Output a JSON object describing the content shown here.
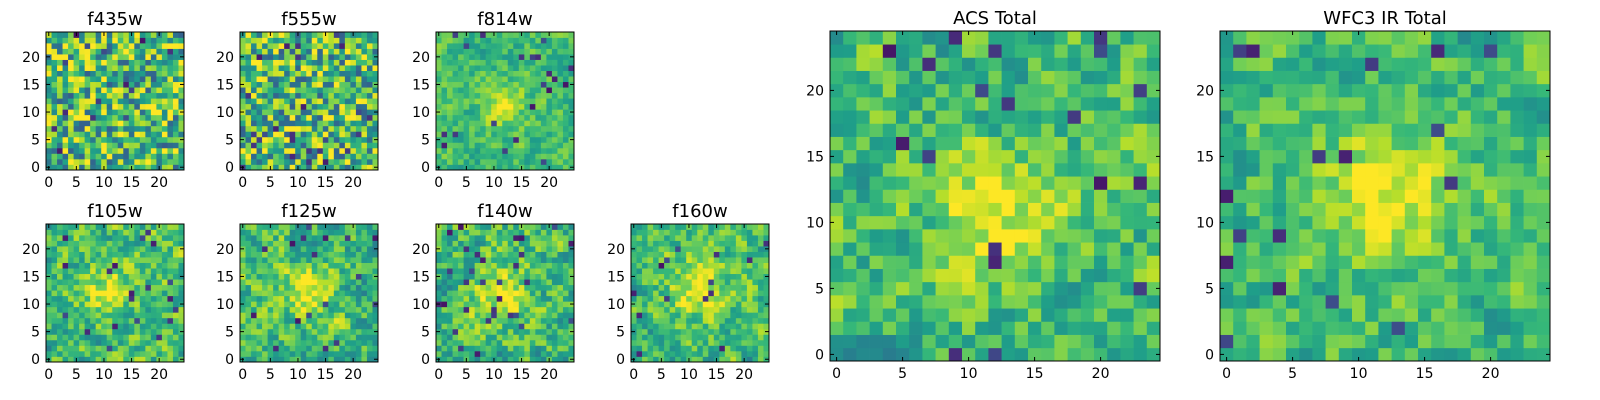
{
  "figure": {
    "description_note": "Grid of 25x25 pixel heatmap cutouts (viridis colormap) per filter band plus stacked totals."
  },
  "chart_data": [
    {
      "type": "heatmap",
      "title": "f435w",
      "grid": [
        25,
        25
      ],
      "xlim": [
        0,
        24
      ],
      "ylim": [
        0,
        24
      ],
      "xticks": [
        0,
        5,
        10,
        15,
        20
      ],
      "yticks": [
        0,
        5,
        10,
        15,
        20
      ],
      "colormap": "viridis",
      "source": {
        "profile": "flat",
        "peak": [
          12,
          12
        ],
        "noise": 0.55,
        "seed": 11
      }
    },
    {
      "type": "heatmap",
      "title": "f555w",
      "grid": [
        25,
        25
      ],
      "xlim": [
        0,
        24
      ],
      "ylim": [
        0,
        24
      ],
      "xticks": [
        0,
        5,
        10,
        15,
        20
      ],
      "yticks": [
        0,
        5,
        10,
        15,
        20
      ],
      "colormap": "viridis",
      "source": {
        "profile": "flat",
        "peak": [
          12,
          12
        ],
        "noise": 0.55,
        "seed": 23
      }
    },
    {
      "type": "heatmap",
      "title": "f814w",
      "grid": [
        25,
        25
      ],
      "xlim": [
        0,
        24
      ],
      "ylim": [
        0,
        24
      ],
      "xticks": [
        0,
        5,
        10,
        15,
        20
      ],
      "yticks": [
        0,
        5,
        10,
        15,
        20
      ],
      "colormap": "viridis",
      "source": {
        "profile": "blob",
        "peak": [
          12,
          11
        ],
        "sigma": 2.5,
        "noise": 0.35,
        "seed": 37
      }
    },
    {
      "type": "heatmap",
      "title": "f105w",
      "grid": [
        25,
        25
      ],
      "xlim": [
        0,
        24
      ],
      "ylim": [
        0,
        24
      ],
      "xticks": [
        0,
        5,
        10,
        15,
        20
      ],
      "yticks": [
        0,
        5,
        10,
        15,
        20
      ],
      "colormap": "viridis",
      "source": {
        "profile": "smooth",
        "peak": [
          11,
          13
        ],
        "sigma": 3,
        "noise": 0.5,
        "seed": 41
      }
    },
    {
      "type": "heatmap",
      "title": "f125w",
      "grid": [
        25,
        25
      ],
      "xlim": [
        0,
        24
      ],
      "ylim": [
        0,
        24
      ],
      "xticks": [
        0,
        5,
        10,
        15,
        20
      ],
      "yticks": [
        0,
        5,
        10,
        15,
        20
      ],
      "colormap": "viridis",
      "source": {
        "profile": "smooth",
        "peak": [
          12,
          12
        ],
        "sigma": 3,
        "noise": 0.5,
        "seed": 53
      }
    },
    {
      "type": "heatmap",
      "title": "f140w",
      "grid": [
        25,
        25
      ],
      "xlim": [
        0,
        24
      ],
      "ylim": [
        0,
        24
      ],
      "xticks": [
        0,
        5,
        10,
        15,
        20
      ],
      "yticks": [
        0,
        5,
        10,
        15,
        20
      ],
      "colormap": "viridis",
      "source": {
        "profile": "smooth",
        "peak": [
          11,
          12
        ],
        "sigma": 3.5,
        "noise": 0.5,
        "seed": 67
      }
    },
    {
      "type": "heatmap",
      "title": "f160w",
      "grid": [
        25,
        25
      ],
      "xlim": [
        0,
        24
      ],
      "ylim": [
        0,
        24
      ],
      "xticks": [
        0,
        5,
        10,
        15,
        20
      ],
      "yticks": [
        0,
        5,
        10,
        15,
        20
      ],
      "colormap": "viridis",
      "source": {
        "profile": "smooth",
        "peak": [
          12,
          13
        ],
        "sigma": 4,
        "noise": 0.45,
        "seed": 79
      }
    },
    {
      "type": "heatmap",
      "title": "ACS Total",
      "grid": [
        25,
        25
      ],
      "xlim": [
        0,
        24
      ],
      "ylim": [
        0,
        24
      ],
      "xticks": [
        0,
        5,
        10,
        15,
        20
      ],
      "yticks": [
        0,
        5,
        10,
        15,
        20
      ],
      "colormap": "viridis",
      "source": {
        "profile": "blob",
        "peak": [
          12,
          11
        ],
        "sigma": 3,
        "noise": 0.45,
        "seed": 97
      }
    },
    {
      "type": "heatmap",
      "title": "WFC3 IR Total",
      "grid": [
        25,
        25
      ],
      "xlim": [
        0,
        24
      ],
      "ylim": [
        0,
        24
      ],
      "xticks": [
        0,
        5,
        10,
        15,
        20
      ],
      "yticks": [
        0,
        5,
        10,
        15,
        20
      ],
      "colormap": "viridis",
      "source": {
        "profile": "blob",
        "peak": [
          12,
          12
        ],
        "sigma": 3.5,
        "noise": 0.4,
        "seed": 113
      }
    }
  ]
}
